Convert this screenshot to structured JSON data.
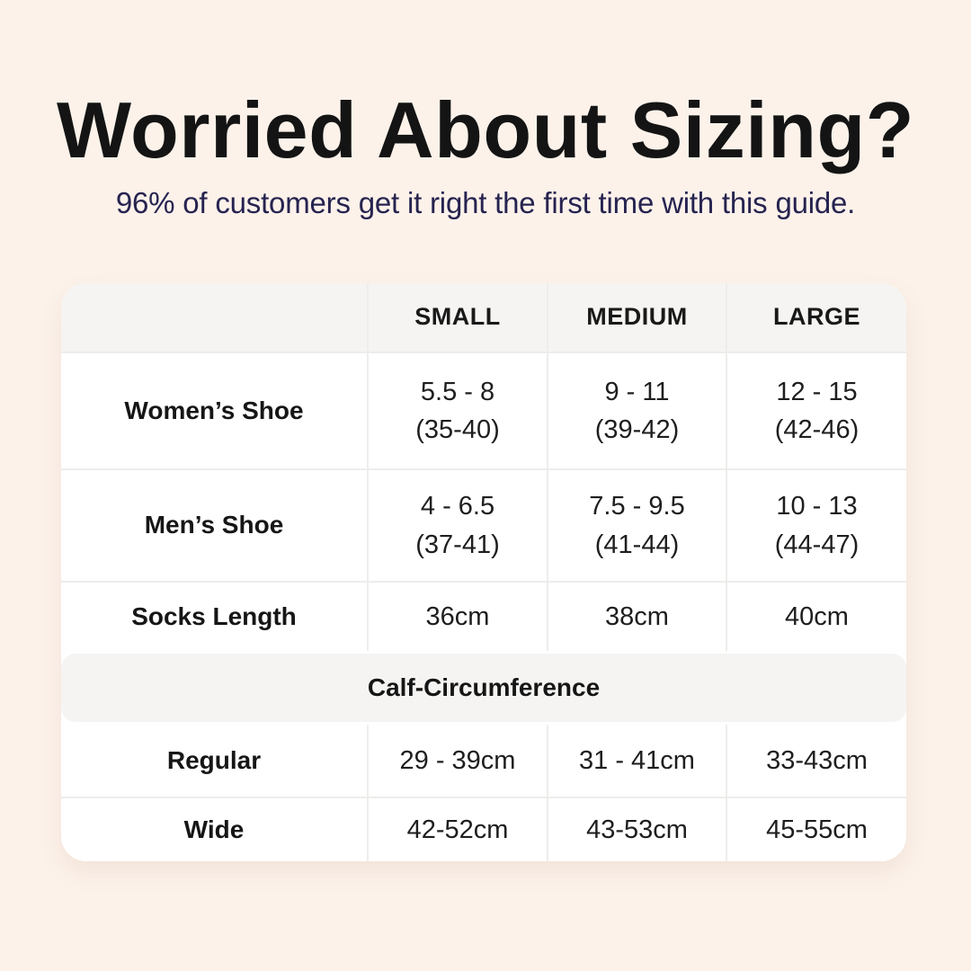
{
  "header": {
    "title": "Worried About Sizing?",
    "subtitle": "96% of customers get it right the first time with this guide."
  },
  "table": {
    "column_headers": {
      "blank": "",
      "small": "SMALL",
      "medium": "MEDIUM",
      "large": "LARGE"
    },
    "shoe_rows": [
      {
        "label": "Women’s Shoe",
        "small": {
          "line1": "5.5 - 8",
          "line2": "(35-40)"
        },
        "medium": {
          "line1": "9 - 11",
          "line2": "(39-42)"
        },
        "large": {
          "line1": "12 - 15",
          "line2": "(42-46)"
        }
      },
      {
        "label": "Men’s Shoe",
        "small": {
          "line1": "4 - 6.5",
          "line2": "(37-41)"
        },
        "medium": {
          "line1": "7.5 - 9.5",
          "line2": "(41-44)"
        },
        "large": {
          "line1": "10 - 13",
          "line2": "(44-47)"
        }
      }
    ],
    "socks_row": {
      "label": "Socks Length",
      "small": "36cm",
      "medium": "38cm",
      "large": "40cm"
    },
    "calf_section": {
      "title": "Calf-Circumference",
      "rows": [
        {
          "label": "Regular",
          "small": "29 - 39cm",
          "medium": "31 - 41cm",
          "large": "33-43cm"
        },
        {
          "label": "Wide",
          "small": "42-52cm",
          "medium": "43-53cm",
          "large": "45-55cm"
        }
      ]
    }
  },
  "colors": {
    "page_background": "#fcf2ea",
    "card_background": "#ffffff",
    "band_background": "#f5f4f2",
    "title_color": "#141414",
    "subtitle_color": "#262350",
    "divider_color": "#ededeb",
    "cell_text_color": "#1e1e1e"
  }
}
